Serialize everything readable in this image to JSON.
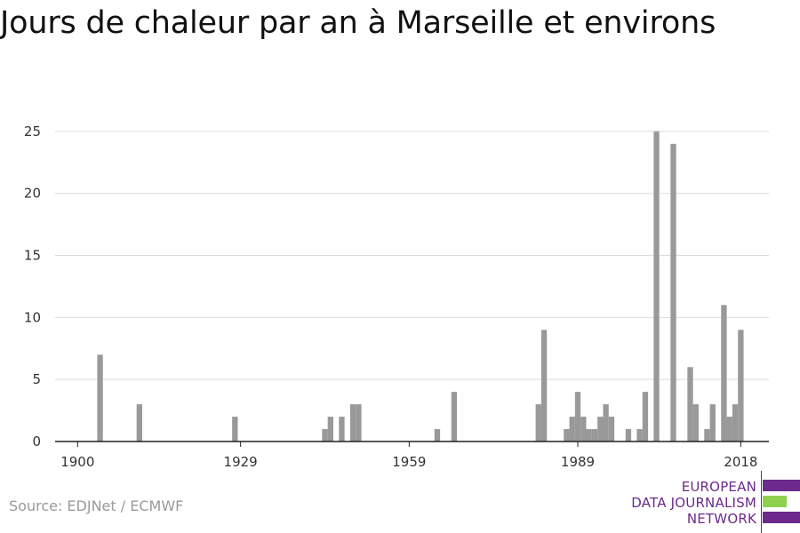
{
  "title": "Jours de chaleur par an à Marseille et environs",
  "source": "Source: EDJNet / ECMWF",
  "logo": {
    "line1": "EUROPEAN",
    "line2": "DATA JOURNALISM",
    "line3": "NETWORK",
    "colors": {
      "purple": "#6b2a8c",
      "green": "#8fd14f"
    }
  },
  "chart_data": {
    "type": "bar",
    "title": "Jours de chaleur par an à Marseille et environs",
    "xlabel": "",
    "ylabel": "",
    "x_ticks": [
      1900,
      1929,
      1959,
      1989,
      2018
    ],
    "y_ticks": [
      0,
      5,
      10,
      15,
      20,
      25
    ],
    "xlim": [
      1896,
      2023
    ],
    "ylim": [
      0,
      27
    ],
    "grid": true,
    "bar_color": "#999999",
    "series": [
      {
        "x": [
          1904,
          1911,
          1928,
          1944,
          1945,
          1947,
          1949,
          1950,
          1964,
          1967,
          1982,
          1983,
          1987,
          1988,
          1989,
          1990,
          1991,
          1992,
          1993,
          1994,
          1995,
          1998,
          2000,
          2001,
          2003,
          2006,
          2009,
          2010,
          2012,
          2013,
          2015,
          2016,
          2017,
          2018
        ],
        "values": [
          7,
          3,
          2,
          1,
          2,
          2,
          3,
          3,
          1,
          4,
          3,
          9,
          1,
          2,
          4,
          2,
          1,
          1,
          2,
          3,
          2,
          1,
          1,
          4,
          25,
          24,
          6,
          3,
          1,
          3,
          11,
          2,
          3,
          9
        ]
      }
    ]
  }
}
